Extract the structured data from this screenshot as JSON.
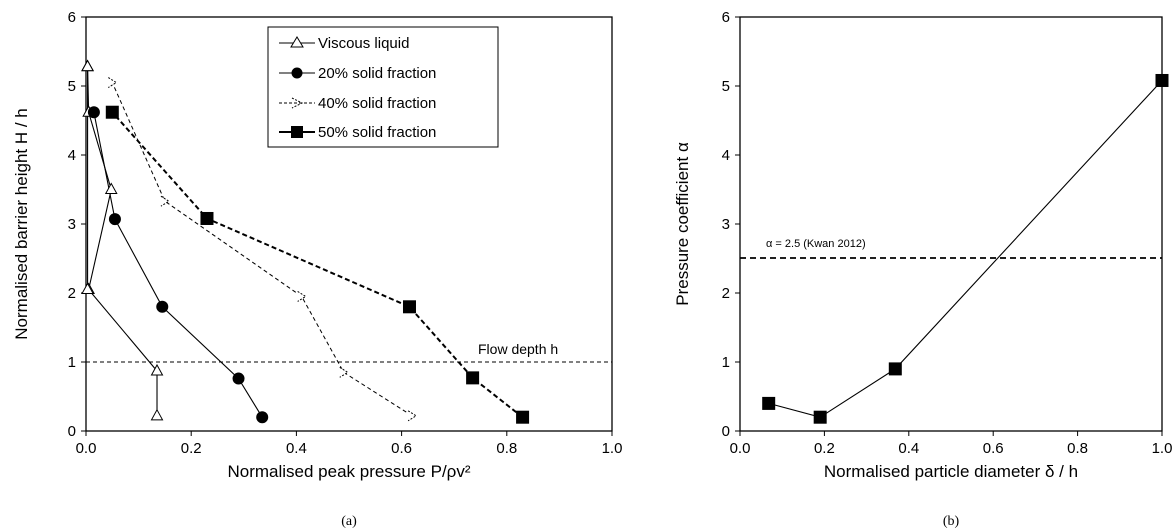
{
  "chart_data": [
    {
      "type": "line",
      "panel_label": "(a)",
      "xlabel": "Normalised peak pressure P/ρv²",
      "ylabel": "Normalised barrier height H / h",
      "xlim": [
        0,
        1.0
      ],
      "ylim": [
        0,
        6
      ],
      "xticks": [
        "0.0",
        "0.2",
        "0.4",
        "0.6",
        "0.8",
        "1.0"
      ],
      "yticks": [
        "0",
        "1",
        "2",
        "3",
        "4",
        "5",
        "6"
      ],
      "legend_position": "top-right",
      "annotation": {
        "text": "Flow depth h",
        "y": 1
      },
      "series": [
        {
          "name": "Viscous liquid",
          "marker": "triangle",
          "line": "solid",
          "points": [
            [
              0.135,
              0.22
            ],
            [
              0.135,
              0.87
            ],
            [
              0.005,
              2.05
            ],
            [
              0.048,
              3.5
            ],
            [
              0.005,
              4.62
            ],
            [
              0.003,
              5.28
            ]
          ]
        },
        {
          "name": "Viscous liquid",
          "marker": "triangle",
          "line": "solid",
          "points": [
            [
              0.003,
              5.28
            ],
            [
              0.003,
              2.05
            ],
            [
              0.003,
              5.28
            ]
          ]
        },
        {
          "name": "20% solid fraction",
          "marker": "circle",
          "line": "solid",
          "points": [
            [
              0.335,
              0.2
            ],
            [
              0.29,
              0.76
            ],
            [
              0.145,
              1.8
            ],
            [
              0.055,
              3.07
            ],
            [
              0.015,
              4.62
            ]
          ]
        },
        {
          "name": "40% solid fraction",
          "marker": "open-arrow",
          "line": "dashed-thin",
          "points": [
            [
              0.62,
              0.22
            ],
            [
              0.49,
              0.85
            ],
            [
              0.41,
              1.95
            ],
            [
              0.15,
              3.33
            ],
            [
              0.05,
              5.05
            ]
          ]
        },
        {
          "name": "50% solid fraction",
          "marker": "square",
          "line": "dashed-bold",
          "points": [
            [
              0.83,
              0.2
            ],
            [
              0.735,
              0.77
            ],
            [
              0.615,
              1.8
            ],
            [
              0.23,
              3.08
            ],
            [
              0.05,
              4.62
            ]
          ]
        }
      ]
    },
    {
      "type": "line",
      "panel_label": "(b)",
      "xlabel": "Normalised particle diameter δ / h",
      "ylabel": "Pressure coefficient α",
      "xlim": [
        0,
        1.0
      ],
      "ylim": [
        0,
        6
      ],
      "xticks": [
        "0.0",
        "0.2",
        "0.4",
        "0.6",
        "0.8",
        "1.0"
      ],
      "yticks": [
        "0",
        "1",
        "2",
        "3",
        "4",
        "5",
        "6"
      ],
      "reference_line": {
        "text": "α = 2.5 (Kwan 2012)",
        "y": 2.5
      },
      "series": [
        {
          "name": "",
          "marker": "square",
          "line": "solid",
          "points": [
            [
              0.068,
              0.4
            ],
            [
              0.19,
              0.2
            ],
            [
              0.368,
              0.9
            ],
            [
              1.0,
              5.08
            ]
          ]
        }
      ]
    }
  ]
}
